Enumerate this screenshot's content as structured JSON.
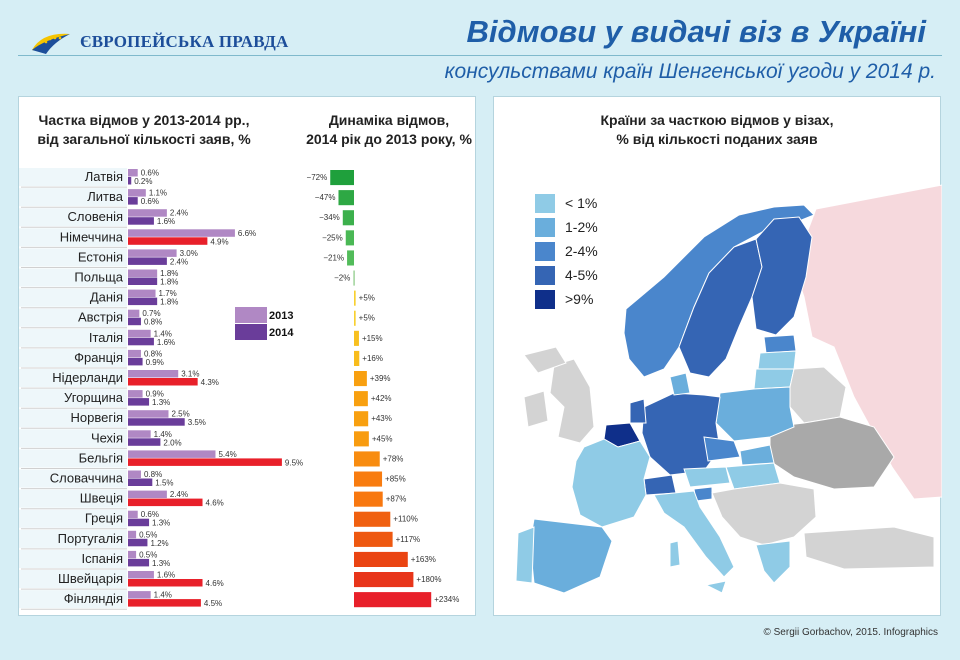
{
  "header": {
    "logo_text": "ЄВРОПЕЙСЬКА ПРАВДА",
    "title": "Відмови у видачі віз в Україні",
    "subtitle": "консульствами країн Шенгенської угоди у 2014 р."
  },
  "left_panel": {
    "heading_share_line1": "Частка відмов у 2013-2014 рр.,",
    "heading_share_line2": "від загальної кількості заяв, %",
    "heading_dyn_line1": "Динаміка відмов,",
    "heading_dyn_line2": "2014 рік до 2013 року, %"
  },
  "right_panel": {
    "heading_line1": "Країни за часткою відмов у візах,",
    "heading_line2": "% від кількості поданих заяв",
    "legend": [
      {
        "label": "< 1%",
        "color": "#8fcbe6"
      },
      {
        "label": "1-2%",
        "color": "#6aaedc"
      },
      {
        "label": "2-4%",
        "color": "#4a86cc"
      },
      {
        "label": "4-5%",
        "color": "#3565b4"
      },
      {
        "label": ">9%",
        "color": "#0f2f8a"
      }
    ]
  },
  "copyright": "© Sergii Gorbachov, 2015. Infographics",
  "chart_data": [
    {
      "type": "bar",
      "title": "Частка відмов у 2013-2014 рр., від загальної кількості заяв, %",
      "categories": [
        "Латвія",
        "Литва",
        "Словенія",
        "Німеччина",
        "Естонія",
        "Польща",
        "Данія",
        "Австрія",
        "Італія",
        "Франція",
        "Нідерланди",
        "Угорщина",
        "Норвегія",
        "Чехія",
        "Бельгія",
        "Словаччина",
        "Швеція",
        "Греція",
        "Португалія",
        "Іспанія",
        "Швейцарія",
        "Фінляндія"
      ],
      "series": [
        {
          "name": "2013",
          "color": "#b088c4",
          "values": [
            0.6,
            1.1,
            2.4,
            6.6,
            3.0,
            1.8,
            1.7,
            0.7,
            1.4,
            0.8,
            3.1,
            0.9,
            2.5,
            1.4,
            5.4,
            0.8,
            2.4,
            0.6,
            0.5,
            0.5,
            1.6,
            1.4
          ],
          "labels": [
            "0.6%",
            "1.1%",
            "2.4%",
            "6.6%",
            "3.0%",
            "1.8%",
            "1.7%",
            "0.7%",
            "1.4%",
            "0.8%",
            "3.1%",
            "0.9%",
            "2.5%",
            "1.4%",
            "5.4%",
            "0.8%",
            "2.4%",
            "0.6%",
            "0.5%",
            "0.5%",
            "1.6%",
            "1.4%"
          ]
        },
        {
          "name": "2014",
          "values": [
            0.2,
            0.6,
            1.6,
            4.9,
            2.4,
            1.8,
            1.8,
            0.8,
            1.6,
            0.9,
            4.3,
            1.3,
            3.5,
            2.0,
            9.5,
            1.5,
            4.6,
            1.3,
            1.2,
            1.3,
            4.6,
            4.5
          ],
          "labels": [
            "0.2%",
            "0.6%",
            "1.6%",
            "4.9%",
            "2.4%",
            "1.8%",
            "1.8%",
            "0.8%",
            "1.6%",
            "0.9%",
            "4.3%",
            "1.3%",
            "3.5%",
            "2.0%",
            "9.5%",
            "1.5%",
            "4.6%",
            "1.3%",
            "1.2%",
            "1.3%",
            "4.6%",
            "4.5%"
          ],
          "colors": [
            "#6a3d9a",
            "#6a3d9a",
            "#6a3d9a",
            "#e8202a",
            "#6a3d9a",
            "#6a3d9a",
            "#6a3d9a",
            "#6a3d9a",
            "#6a3d9a",
            "#6a3d9a",
            "#e8202a",
            "#6a3d9a",
            "#6a3d9a",
            "#6a3d9a",
            "#e8202a",
            "#6a3d9a",
            "#e8202a",
            "#6a3d9a",
            "#6a3d9a",
            "#6a3d9a",
            "#e8202a",
            "#e8202a"
          ]
        }
      ],
      "legend": [
        "2013",
        "2014"
      ],
      "xlim": [
        0,
        10
      ]
    },
    {
      "type": "bar",
      "title": "Динаміка відмов, 2014 рік до 2013 року, %",
      "categories": [
        "Латвія",
        "Литва",
        "Словенія",
        "Німеччина",
        "Естонія",
        "Польща",
        "Данія",
        "Австрія",
        "Італія",
        "Франція",
        "Нідерланди",
        "Угорщина",
        "Норвегія",
        "Чехія",
        "Бельгія",
        "Словаччина",
        "Швеція",
        "Греція",
        "Португалія",
        "Іспанія",
        "Швейцарія",
        "Фінляндія"
      ],
      "values": [
        -72,
        -47,
        -34,
        -25,
        -21,
        -2,
        5,
        5,
        15,
        16,
        39,
        42,
        43,
        45,
        78,
        85,
        87,
        110,
        117,
        163,
        180,
        234
      ],
      "labels": [
        "−72%",
        "−47%",
        "−34%",
        "−25%",
        "−21%",
        "−2%",
        "+5%",
        "+5%",
        "+15%",
        "+16%",
        "+39%",
        "+42%",
        "+43%",
        "+45%",
        "+78%",
        "+85%",
        "+87%",
        "+110%",
        "+117%",
        "+163%",
        "+180%",
        "+234%"
      ],
      "colors": [
        "#1fa03c",
        "#2ea844",
        "#3cb04c",
        "#4ab855",
        "#52bc5a",
        "#9ed49a",
        "#f8d030",
        "#f8d030",
        "#f8c020",
        "#f8bc1c",
        "#f8a010",
        "#f8a010",
        "#f8a010",
        "#f89c10",
        "#f88c10",
        "#f87c10",
        "#f87810",
        "#f06010",
        "#ee5810",
        "#ea4412",
        "#e8351a",
        "#e8202a"
      ]
    }
  ]
}
